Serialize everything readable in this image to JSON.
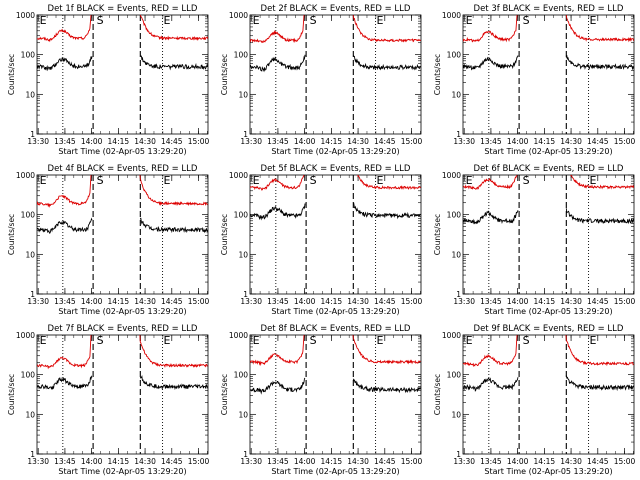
{
  "colors": {
    "events": "#000000",
    "lld": "#dd0000",
    "axis": "#000000",
    "background": "#ffffff"
  },
  "chart_data": [
    {
      "type": "line",
      "title": "Det 1f BLACK = Events, RED = LLD",
      "xlabel": "Start Time (02-Apr-05 13:29:20)",
      "ylabel": "Counts/sec",
      "x_tick_labels": [
        "13:30",
        "13:45",
        "14:00",
        "14:15",
        "14:30",
        "14:45",
        "15:00"
      ],
      "x_tick_minutes": [
        0.67,
        15.67,
        30.67,
        45.67,
        60.67,
        75.67,
        90.67
      ],
      "xlim_minutes": [
        0,
        96
      ],
      "y_scale": "log",
      "y_tick_labels": [
        "1",
        "10",
        "100",
        "1000"
      ],
      "ylim": [
        1,
        1000
      ],
      "dotted_line_minutes": [
        14.5,
        70.5
      ],
      "dashed_line_minutes": [
        31.5,
        58.0
      ],
      "markers": [
        {
          "text": "E",
          "minute": 1.5
        },
        {
          "text": "S",
          "minute": 33.5
        },
        {
          "text": "E",
          "minute": 71.0
        }
      ],
      "series": [
        {
          "name": "LLD",
          "color": "#dd0000",
          "level": 260,
          "gap_minutes": [
            30,
            58
          ]
        },
        {
          "name": "Events",
          "color": "#000000",
          "level": 50,
          "gap_minutes": [
            31,
            58
          ]
        }
      ]
    },
    {
      "type": "line",
      "title": "Det 2f BLACK = Events, RED = LLD",
      "xlabel": "Start Time (02-Apr-05 13:29:20)",
      "ylabel": "Counts/sec",
      "x_tick_labels": [
        "13:30",
        "13:45",
        "14:00",
        "14:15",
        "14:30",
        "14:45",
        "15:00"
      ],
      "x_tick_minutes": [
        0.67,
        15.67,
        30.67,
        45.67,
        60.67,
        75.67,
        90.67
      ],
      "xlim_minutes": [
        0,
        96
      ],
      "y_scale": "log",
      "y_tick_labels": [
        "1",
        "10",
        "100",
        "1000"
      ],
      "ylim": [
        1,
        1000
      ],
      "dotted_line_minutes": [
        14.5,
        70.5
      ],
      "dashed_line_minutes": [
        31.5,
        58.0
      ],
      "markers": [
        {
          "text": "E",
          "minute": 1.5
        },
        {
          "text": "S",
          "minute": 33.5
        },
        {
          "text": "E",
          "minute": 71.0
        }
      ],
      "series": [
        {
          "name": "LLD",
          "color": "#dd0000",
          "level": 230,
          "gap_minutes": [
            30,
            58
          ]
        },
        {
          "name": "Events",
          "color": "#000000",
          "level": 48,
          "gap_minutes": [
            31,
            58
          ]
        }
      ]
    },
    {
      "type": "line",
      "title": "Det 3f BLACK = Events, RED = LLD",
      "xlabel": "Start Time (02-Apr-05 13:29:20)",
      "ylabel": "Counts/sec",
      "x_tick_labels": [
        "13:30",
        "13:45",
        "14:00",
        "14:15",
        "14:30",
        "14:45",
        "15:00"
      ],
      "x_tick_minutes": [
        0.67,
        15.67,
        30.67,
        45.67,
        60.67,
        75.67,
        90.67
      ],
      "xlim_minutes": [
        0,
        96
      ],
      "y_scale": "log",
      "y_tick_labels": [
        "1",
        "10",
        "100",
        "1000"
      ],
      "ylim": [
        1,
        1000
      ],
      "dotted_line_minutes": [
        14.5,
        70.5
      ],
      "dashed_line_minutes": [
        31.5,
        58.0
      ],
      "markers": [
        {
          "text": "E",
          "minute": 1.5
        },
        {
          "text": "S",
          "minute": 33.5
        },
        {
          "text": "E",
          "minute": 71.0
        }
      ],
      "series": [
        {
          "name": "LLD",
          "color": "#dd0000",
          "level": 240,
          "gap_minutes": [
            30,
            58
          ]
        },
        {
          "name": "Events",
          "color": "#000000",
          "level": 50,
          "gap_minutes": [
            31,
            58
          ]
        }
      ]
    },
    {
      "type": "line",
      "title": "Det 4f BLACK = Events, RED = LLD",
      "xlabel": "Start Time (02-Apr-05 13:29:20)",
      "ylabel": "Counts/sec",
      "x_tick_labels": [
        "13:30",
        "13:45",
        "14:00",
        "14:15",
        "14:30",
        "14:45",
        "15:00"
      ],
      "x_tick_minutes": [
        0.67,
        15.67,
        30.67,
        45.67,
        60.67,
        75.67,
        90.67
      ],
      "xlim_minutes": [
        0,
        96
      ],
      "y_scale": "log",
      "y_tick_labels": [
        "1",
        "10",
        "100",
        "1000"
      ],
      "ylim": [
        1,
        1000
      ],
      "dotted_line_minutes": [
        14.5,
        70.5
      ],
      "dashed_line_minutes": [
        31.5,
        58.0
      ],
      "markers": [
        {
          "text": "E",
          "minute": 1.5
        },
        {
          "text": "S",
          "minute": 33.5
        },
        {
          "text": "E",
          "minute": 71.0
        }
      ],
      "series": [
        {
          "name": "LLD",
          "color": "#dd0000",
          "level": 190,
          "gap_minutes": [
            30,
            58
          ]
        },
        {
          "name": "Events",
          "color": "#000000",
          "level": 42,
          "gap_minutes": [
            31,
            58
          ]
        }
      ]
    },
    {
      "type": "line",
      "title": "Det 5f BLACK = Events, RED = LLD",
      "xlabel": "Start Time (02-Apr-05 13:29:20)",
      "ylabel": "Counts/sec",
      "x_tick_labels": [
        "13:30",
        "13:45",
        "14:00",
        "14:15",
        "14:30",
        "14:45",
        "15:00"
      ],
      "x_tick_minutes": [
        0.67,
        15.67,
        30.67,
        45.67,
        60.67,
        75.67,
        90.67
      ],
      "xlim_minutes": [
        0,
        96
      ],
      "y_scale": "log",
      "y_tick_labels": [
        "1",
        "10",
        "100",
        "1000"
      ],
      "ylim": [
        1,
        1000
      ],
      "dotted_line_minutes": [
        14.5,
        70.5
      ],
      "dashed_line_minutes": [
        31.5,
        58.0
      ],
      "markers": [
        {
          "text": "E",
          "minute": 1.5
        },
        {
          "text": "S",
          "minute": 33.5
        },
        {
          "text": "E",
          "minute": 71.0
        }
      ],
      "series": [
        {
          "name": "LLD",
          "color": "#dd0000",
          "level": 480,
          "gap_minutes": [
            30,
            58
          ]
        },
        {
          "name": "Events",
          "color": "#000000",
          "level": 95,
          "gap_minutes": [
            31,
            58
          ]
        }
      ]
    },
    {
      "type": "line",
      "title": "Det 6f BLACK = Events, RED = LLD",
      "xlabel": "Start Time (02-Apr-05 13:29:20)",
      "ylabel": "Counts/sec",
      "x_tick_labels": [
        "13:30",
        "13:45",
        "14:00",
        "14:15",
        "14:30",
        "14:45",
        "15:00"
      ],
      "x_tick_minutes": [
        0.67,
        15.67,
        30.67,
        45.67,
        60.67,
        75.67,
        90.67
      ],
      "xlim_minutes": [
        0,
        96
      ],
      "y_scale": "log",
      "y_tick_labels": [
        "1",
        "10",
        "100",
        "1000"
      ],
      "ylim": [
        1,
        1000
      ],
      "dotted_line_minutes": [
        14.5,
        70.5
      ],
      "dashed_line_minutes": [
        31.5,
        58.0
      ],
      "markers": [
        {
          "text": "E",
          "minute": 1.5
        },
        {
          "text": "S",
          "minute": 33.5
        },
        {
          "text": "E",
          "minute": 71.0
        }
      ],
      "series": [
        {
          "name": "LLD",
          "color": "#dd0000",
          "level": 500,
          "gap_minutes": [
            30,
            58
          ]
        },
        {
          "name": "Events",
          "color": "#000000",
          "level": 70,
          "gap_minutes": [
            31,
            58
          ]
        }
      ]
    },
    {
      "type": "line",
      "title": "Det 7f BLACK = Events, RED = LLD",
      "xlabel": "Start Time (02-Apr-05 13:29:20)",
      "ylabel": "Counts/sec",
      "x_tick_labels": [
        "13:30",
        "13:45",
        "14:00",
        "14:15",
        "14:30",
        "14:45",
        "15:00"
      ],
      "x_tick_minutes": [
        0.67,
        15.67,
        30.67,
        45.67,
        60.67,
        75.67,
        90.67
      ],
      "xlim_minutes": [
        0,
        96
      ],
      "y_scale": "log",
      "y_tick_labels": [
        "1",
        "10",
        "100",
        "1000"
      ],
      "ylim": [
        1,
        1000
      ],
      "dotted_line_minutes": [
        14.5,
        70.5
      ],
      "dashed_line_minutes": [
        31.5,
        58.0
      ],
      "markers": [
        {
          "text": "E",
          "minute": 1.5
        },
        {
          "text": "S",
          "minute": 33.5
        },
        {
          "text": "E",
          "minute": 71.0
        }
      ],
      "series": [
        {
          "name": "LLD",
          "color": "#dd0000",
          "level": 170,
          "gap_minutes": [
            30,
            58
          ]
        },
        {
          "name": "Events",
          "color": "#000000",
          "level": 50,
          "gap_minutes": [
            31,
            58
          ]
        }
      ]
    },
    {
      "type": "line",
      "title": "Det 8f BLACK = Events, RED = LLD",
      "xlabel": "Start Time (02-Apr-05 13:29:20)",
      "ylabel": "Counts/sec",
      "x_tick_labels": [
        "13:30",
        "13:45",
        "14:00",
        "14:15",
        "14:30",
        "14:45",
        "15:00"
      ],
      "x_tick_minutes": [
        0.67,
        15.67,
        30.67,
        45.67,
        60.67,
        75.67,
        90.67
      ],
      "xlim_minutes": [
        0,
        96
      ],
      "y_scale": "log",
      "y_tick_labels": [
        "1",
        "10",
        "100",
        "1000"
      ],
      "ylim": [
        1,
        1000
      ],
      "dotted_line_minutes": [
        14.5,
        70.5
      ],
      "dashed_line_minutes": [
        31.5,
        58.0
      ],
      "markers": [
        {
          "text": "E",
          "minute": 1.5
        },
        {
          "text": "S",
          "minute": 33.5
        },
        {
          "text": "E",
          "minute": 71.0
        }
      ],
      "series": [
        {
          "name": "LLD",
          "color": "#dd0000",
          "level": 210,
          "gap_minutes": [
            30,
            58
          ]
        },
        {
          "name": "Events",
          "color": "#000000",
          "level": 42,
          "gap_minutes": [
            31,
            58
          ]
        }
      ]
    },
    {
      "type": "line",
      "title": "Det 9f BLACK = Events, RED = LLD",
      "xlabel": "Start Time (02-Apr-05 13:29:20)",
      "ylabel": "Counts/sec",
      "x_tick_labels": [
        "13:30",
        "13:45",
        "14:00",
        "14:15",
        "14:30",
        "14:45",
        "15:00"
      ],
      "x_tick_minutes": [
        0.67,
        15.67,
        30.67,
        45.67,
        60.67,
        75.67,
        90.67
      ],
      "xlim_minutes": [
        0,
        96
      ],
      "y_scale": "log",
      "y_tick_labels": [
        "1",
        "10",
        "100",
        "1000"
      ],
      "ylim": [
        1,
        1000
      ],
      "dotted_line_minutes": [
        14.5,
        70.5
      ],
      "dashed_line_minutes": [
        31.5,
        58.0
      ],
      "markers": [
        {
          "text": "E",
          "minute": 1.5
        },
        {
          "text": "S",
          "minute": 33.5
        },
        {
          "text": "E",
          "minute": 71.0
        }
      ],
      "series": [
        {
          "name": "LLD",
          "color": "#dd0000",
          "level": 190,
          "gap_minutes": [
            30,
            58
          ]
        },
        {
          "name": "Events",
          "color": "#000000",
          "level": 48,
          "gap_minutes": [
            31,
            58
          ]
        }
      ]
    }
  ]
}
